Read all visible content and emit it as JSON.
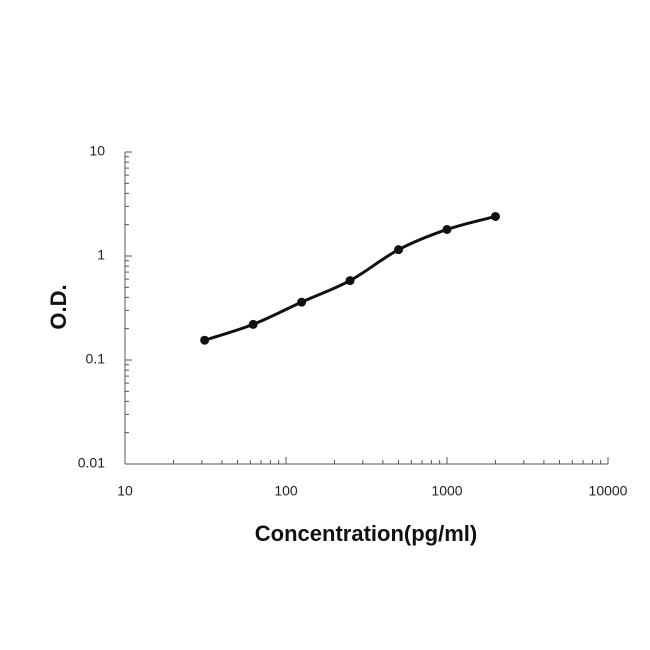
{
  "chart_data": {
    "type": "line",
    "title": null,
    "x_label": "Concentration(pg/ml)",
    "y_label": "O.D.",
    "x": [
      31.25,
      62.5,
      125,
      250,
      500,
      1000,
      2000
    ],
    "series": [
      {
        "color": "#111111",
        "values": [
          0.155,
          0.22,
          0.36,
          0.58,
          1.15,
          1.8,
          2.4
        ]
      }
    ],
    "smooth": true,
    "markers": true,
    "xscale": "log",
    "yscale": "log",
    "xlim": [
      10,
      10000
    ],
    "xticks": [
      10,
      100,
      1000,
      10000
    ],
    "ylim": [
      0.01,
      10
    ],
    "yticks": [
      0.01,
      0.1,
      1,
      10
    ],
    "grid": false
  }
}
